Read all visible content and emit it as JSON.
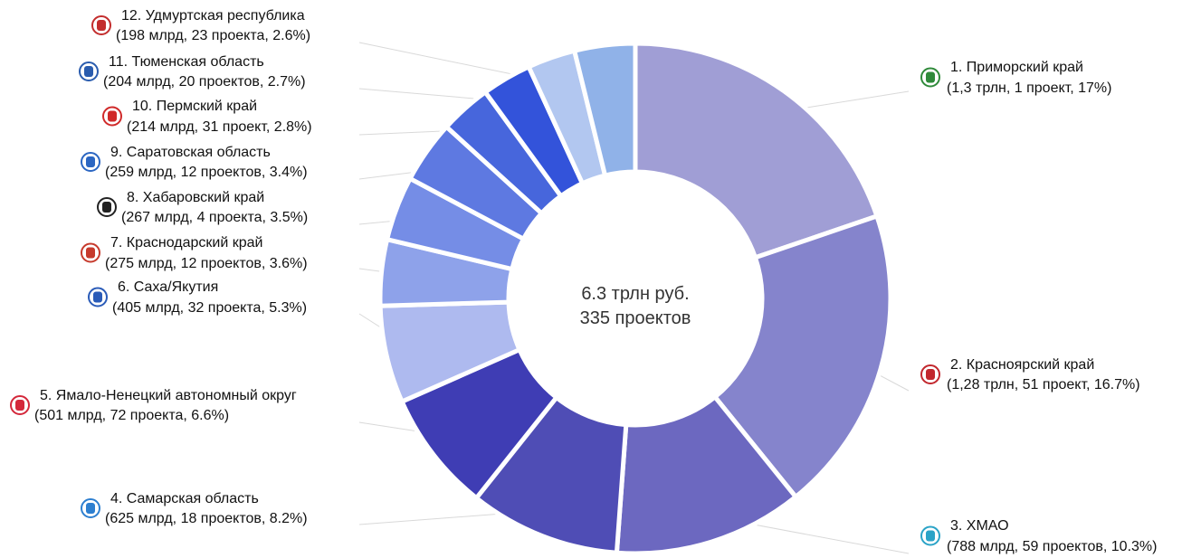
{
  "chart_data": {
    "type": "donut",
    "center_label": [
      "6.3 трлн руб.",
      "335 проектов"
    ],
    "slices": [
      {
        "rank": 1,
        "name": "Приморский край",
        "detail": "(1,3 трлн, 1 проект, 17%)",
        "percent": 17.0,
        "color": "#a09ed5",
        "emblem_color": "#2f8a3a"
      },
      {
        "rank": 2,
        "name": "Красноярский край",
        "detail": "(1,28 трлн, 51 проект, 16.7%)",
        "percent": 16.7,
        "color": "#8584cc",
        "emblem_color": "#c2272d"
      },
      {
        "rank": 3,
        "name": "ХМАО",
        "detail": "(788 млрд, 59 проектов, 10.3%)",
        "percent": 10.3,
        "color": "#6c68c0",
        "emblem_color": "#2aa3c7"
      },
      {
        "rank": 4,
        "name": "Самарская область",
        "detail": "(625 млрд, 18 проектов, 8.2%)",
        "percent": 8.2,
        "color": "#4f4db5",
        "emblem_color": "#2d7fd0"
      },
      {
        "rank": 5,
        "name": "Ямало-Ненецкий автономный округ",
        "detail": "(501 млрд, 72 проекта, 6.6%)",
        "percent": 6.6,
        "color": "#3f3db4",
        "emblem_color": "#d4283b"
      },
      {
        "rank": 6,
        "name": "Саха/Якутия",
        "detail": "(405 млрд, 32 проекта, 5.3%)",
        "percent": 5.3,
        "color": "#aebaef",
        "emblem_color": "#2a5bb8"
      },
      {
        "rank": 7,
        "name": "Краснодарский край",
        "detail": "(275 млрд, 12 проектов, 3.6%)",
        "percent": 3.6,
        "color": "#8ea2ea",
        "emblem_color": "#c63a2c"
      },
      {
        "rank": 8,
        "name": "Хабаровский край",
        "detail": "(267 млрд, 4 проекта, 3.5%)",
        "percent": 3.5,
        "color": "#758de6",
        "emblem_color": "#222222"
      },
      {
        "rank": 9,
        "name": "Саратовская область",
        "detail": "(259 млрд, 12 проектов, 3.4%)",
        "percent": 3.4,
        "color": "#5e79e1",
        "emblem_color": "#2b66c2"
      },
      {
        "rank": 10,
        "name": "Пермский край",
        "detail": "(214 млрд, 31 проект, 2.8%)",
        "percent": 2.8,
        "color": "#4766dc",
        "emblem_color": "#d02a2a"
      },
      {
        "rank": 11,
        "name": "Тюменская область",
        "detail": "(204 млрд, 20 проектов, 2.7%)",
        "percent": 2.7,
        "color": "#3353da",
        "emblem_color": "#2a5cae"
      },
      {
        "rank": 12,
        "name": "Удмуртская республика",
        "detail": "(198 млрд, 23 проекта, 2.6%)",
        "percent": 2.6,
        "color": "#b2c7f0",
        "emblem_color": "#c32d2d"
      },
      {
        "rank": null,
        "name": "",
        "detail": "",
        "percent": 3.3,
        "color": "#90b2e8",
        "emblem_color": ""
      }
    ]
  }
}
